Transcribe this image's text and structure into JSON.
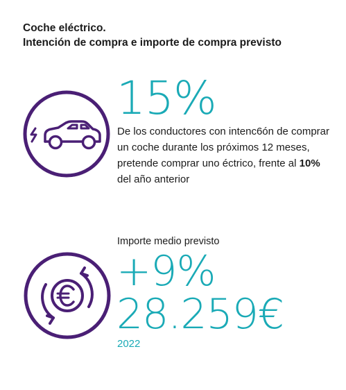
{
  "header": {
    "title_line1": "Coche eléctrico.",
    "title_line2": "Intención de compra e importe de compra previsto"
  },
  "stat_intent": {
    "value": "15%",
    "description_before": "De los conductores con intenc6ón de comprar un coche durante los próximos 12 meses, pretende comprar uno éctrico, frente al ",
    "description_highlight": "10%",
    "description_after": " del año anterior",
    "icon": "electric-car-icon"
  },
  "stat_amount": {
    "label": "Importe medio previsto",
    "change": "+9%",
    "amount": "28.259€",
    "year": "2022",
    "icon": "euro-cycle-icon"
  },
  "colors": {
    "accent_teal": "#1aaab6",
    "icon_purple": "#4a1f75",
    "text_dark": "#1b1b1b"
  }
}
